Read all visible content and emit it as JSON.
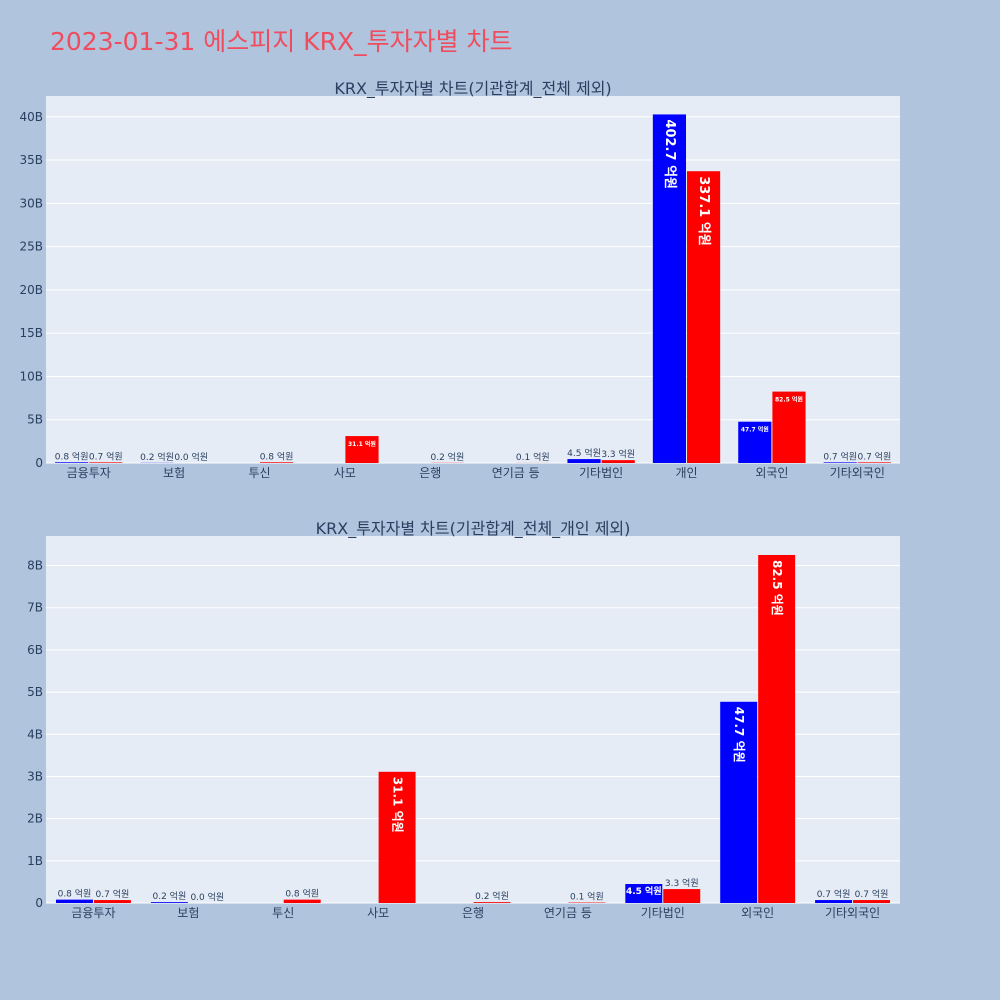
{
  "title": "2023-01-31 에스피지 KRX_투자자별 차트",
  "colors": {
    "buy": "#0000ff",
    "sell": "#ff0000",
    "title": "#ef4d5e"
  },
  "chart_data": [
    {
      "type": "bar",
      "title": "KRX_투자자별 차트(기관합계_전체 제외)",
      "categories": [
        "금융투자",
        "보험",
        "투신",
        "사모",
        "은행",
        "연기금 등",
        "기타법인",
        "개인",
        "외국인",
        "기타외국인"
      ],
      "series": [
        {
          "values": [
            0.08,
            0.02,
            0,
            0,
            0,
            0,
            0.45,
            40.27,
            4.77,
            0.07
          ],
          "labels": [
            "0.8 억원",
            "0.2 억원",
            "",
            "",
            "",
            "",
            "4.5 억원",
            "402.7 억원",
            "47.7 억원",
            "0.7 억원"
          ]
        },
        {
          "values": [
            0.07,
            0.0,
            0.08,
            3.11,
            0.02,
            0.01,
            0.33,
            33.71,
            8.25,
            0.07
          ],
          "labels": [
            "0.7 억원",
            "0.0 억원",
            "0.8 억원",
            "31.1 억원",
            "0.2 억원",
            "0.1 억원",
            "3.3 억원",
            "337.1 억원",
            "82.5 억원",
            "0.7 억원"
          ]
        }
      ],
      "yticks": [
        "0",
        "5B",
        "10B",
        "15B",
        "20B",
        "25B",
        "30B",
        "35B",
        "40B"
      ],
      "ytick_values": [
        0,
        5,
        10,
        15,
        20,
        25,
        30,
        35,
        40
      ],
      "ylim": [
        0,
        42.4
      ],
      "grid": true
    },
    {
      "type": "bar",
      "title": "KRX_투자자별 차트(기관합계_전체_개인 제외)",
      "categories": [
        "금융투자",
        "보험",
        "투신",
        "사모",
        "은행",
        "연기금 등",
        "기타법인",
        "외국인",
        "기타외국인"
      ],
      "series": [
        {
          "values": [
            0.08,
            0.02,
            0,
            0,
            0,
            0,
            0.45,
            4.77,
            0.07
          ],
          "labels": [
            "0.8 억원",
            "0.2 억원",
            "",
            "",
            "",
            "",
            "4.5 억원",
            "47.7 억원",
            "0.7 억원"
          ]
        },
        {
          "values": [
            0.07,
            0.0,
            0.08,
            3.11,
            0.02,
            0.01,
            0.33,
            8.25,
            0.07
          ],
          "labels": [
            "0.7 억원",
            "0.0 억원",
            "0.8 억원",
            "31.1 억원",
            "0.2 억원",
            "0.1 억원",
            "3.3 억원",
            "82.5 억원",
            "0.7 억원"
          ]
        }
      ],
      "yticks": [
        "0",
        "1B",
        "2B",
        "3B",
        "4B",
        "5B",
        "6B",
        "7B",
        "8B"
      ],
      "ytick_values": [
        0,
        1,
        2,
        3,
        4,
        5,
        6,
        7,
        8
      ],
      "ylim": [
        0,
        8.7
      ],
      "grid": true
    }
  ]
}
